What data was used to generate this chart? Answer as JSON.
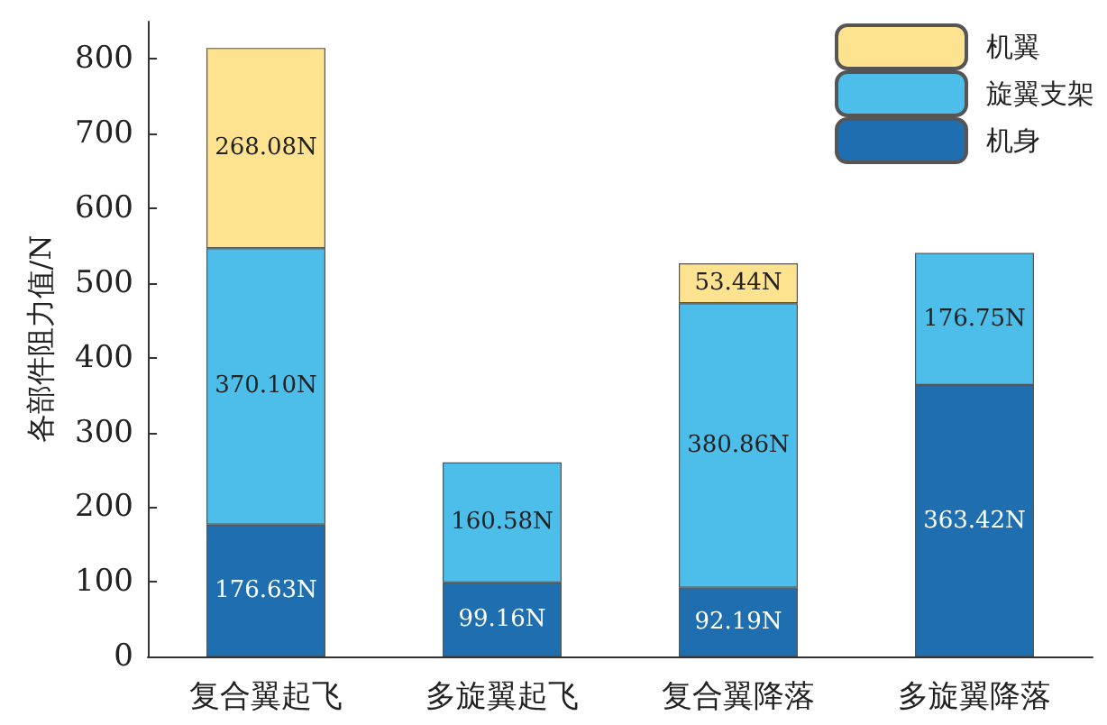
{
  "chart_data": {
    "type": "bar",
    "stacked": true,
    "ylabel": "各部件阻力值/N",
    "categories": [
      "复合翼起飞",
      "多旋翼起飞",
      "复合翼降落",
      "多旋翼降落"
    ],
    "series": [
      {
        "name": "机身",
        "color": "#1f6fb0",
        "values": [
          176.63,
          99.16,
          92.19,
          363.42
        ],
        "value_labels": [
          "176.63N",
          "99.16N",
          "92.19N",
          "363.42N"
        ]
      },
      {
        "name": "旋翼支架",
        "color": "#4dbde9",
        "values": [
          370.1,
          160.58,
          380.86,
          176.75
        ],
        "value_labels": [
          "370.10N",
          "160.58N",
          "380.86N",
          "176.75N"
        ]
      },
      {
        "name": "机翼",
        "color": "#fde38f",
        "values": [
          268.08,
          null,
          53.44,
          null
        ],
        "value_labels": [
          "268.08N",
          null,
          "53.44N",
          null
        ]
      }
    ],
    "ylim": [
      0,
      850
    ],
    "yticks": [
      0,
      100,
      200,
      300,
      400,
      500,
      600,
      700,
      800
    ],
    "grid": false,
    "legend": "top right"
  }
}
